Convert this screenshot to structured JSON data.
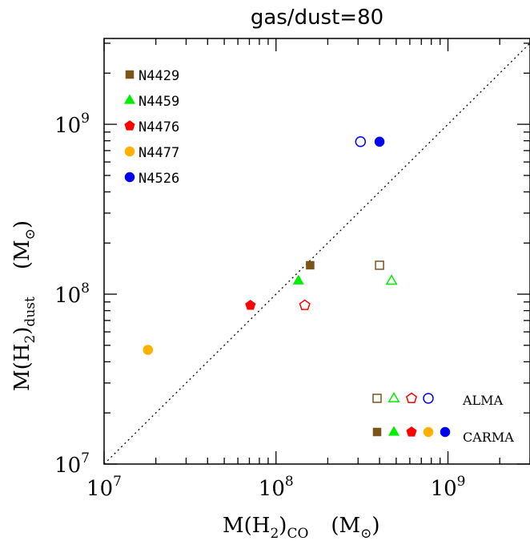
{
  "chart_data": {
    "type": "scatter",
    "title": "gas/dust=80",
    "xlabel": {
      "main": "M(H",
      "sub": "2",
      "close": ")",
      "sub2": "CO",
      "unit": "(M",
      "unit_sub": "⊙",
      "unit_close": ")"
    },
    "ylabel": {
      "main": "M(H",
      "sub": "2",
      "close": ")",
      "sub2": "dust",
      "unit": "(M",
      "unit_sub": "⊙",
      "unit_close": ")"
    },
    "log_scale": true,
    "xlim": [
      10000000.0,
      3000000000.0
    ],
    "ylim": [
      10000000.0,
      3200000000.0
    ],
    "x_ticks": [
      {
        "base": "10",
        "exp": "7",
        "value": 10000000.0
      },
      {
        "base": "10",
        "exp": "8",
        "value": 100000000.0
      },
      {
        "base": "10",
        "exp": "9",
        "value": 1000000000.0
      }
    ],
    "y_ticks": [
      {
        "base": "10",
        "exp": "7",
        "value": 10000000.0
      },
      {
        "base": "10",
        "exp": "8",
        "value": 100000000.0
      },
      {
        "base": "10",
        "exp": "9",
        "value": 1000000000.0
      }
    ],
    "one_to_one_line": true,
    "legend_position": "top-left",
    "series": [
      {
        "name": "N4429",
        "marker": "square",
        "color": "#7a5418",
        "carma": {
          "x": 158000000.0,
          "y": 148000000.0
        },
        "alma": {
          "x": 400000000.0,
          "y": 148000000.0
        }
      },
      {
        "name": "N4459",
        "marker": "triangle",
        "color": "#00ee00",
        "carma": {
          "x": 135000000.0,
          "y": 120000000.0
        },
        "alma": {
          "x": 470000000.0,
          "y": 120000000.0
        }
      },
      {
        "name": "N4476",
        "marker": "pentagon",
        "color": "#ff0000",
        "carma": {
          "x": 71000000.0,
          "y": 86000000.0
        },
        "alma": {
          "x": 147000000.0,
          "y": 86000000.0
        }
      },
      {
        "name": "N4477",
        "marker": "circle",
        "color": "#ffb000",
        "carma": {
          "x": 18000000.0,
          "y": 47000000.0
        },
        "alma": null
      },
      {
        "name": "N4526",
        "marker": "circle",
        "color": "#0000ee",
        "carma": {
          "x": 400000000.0,
          "y": 790000000.0
        },
        "alma": {
          "x": 310000000.0,
          "y": 790000000.0
        }
      }
    ],
    "marker_key": {
      "alma_label": "ALMA",
      "carma_label": "CARMA"
    }
  }
}
